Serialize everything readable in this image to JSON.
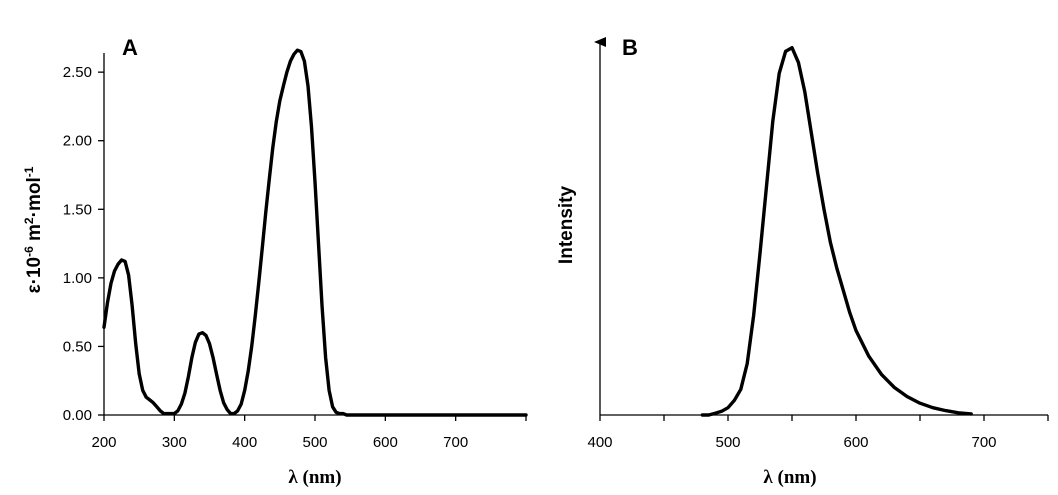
{
  "chart_data": [
    {
      "type": "line",
      "panel_label": "A",
      "xlabel": "λ (nm)",
      "ylabel": "ε·10",
      "ylabel_exp1": "-6",
      "ylabel_mid": " m",
      "ylabel_exp2": "2",
      "ylabel_end": "·mol",
      "ylabel_exp3": "-1",
      "xlim": [
        200,
        800
      ],
      "ylim": [
        0,
        2.8
      ],
      "xticks": [
        200,
        300,
        400,
        500,
        600,
        700
      ],
      "xtick_labels": [
        "200",
        "300",
        "400",
        "500",
        "600",
        "700"
      ],
      "yticks": [
        0,
        0.5,
        1.0,
        1.5,
        2.0,
        2.5
      ],
      "ytick_labels": [
        "0.00",
        "0.50",
        "1.00",
        "1.50",
        "2.00",
        "2.50"
      ],
      "grid": false,
      "series": [
        {
          "x": [
            200,
            205,
            210,
            215,
            220,
            225,
            230,
            235,
            240,
            245,
            250,
            255,
            260,
            265,
            270,
            275,
            280,
            285,
            290,
            295,
            300,
            305,
            310,
            315,
            320,
            325,
            330,
            335,
            340,
            345,
            350,
            355,
            360,
            365,
            370,
            375,
            380,
            385,
            390,
            395,
            400,
            405,
            410,
            415,
            420,
            425,
            430,
            435,
            440,
            445,
            450,
            455,
            460,
            465,
            470,
            475,
            480,
            485,
            490,
            495,
            500,
            505,
            510,
            515,
            520,
            525,
            530,
            535,
            540,
            545,
            550,
            560,
            580,
            600,
            650,
            700,
            750,
            800
          ],
          "y": [
            0.64,
            0.82,
            0.96,
            1.05,
            1.1,
            1.13,
            1.12,
            1.02,
            0.8,
            0.52,
            0.3,
            0.18,
            0.13,
            0.11,
            0.09,
            0.06,
            0.03,
            0.01,
            0.01,
            0.01,
            0.01,
            0.03,
            0.08,
            0.16,
            0.28,
            0.42,
            0.53,
            0.59,
            0.6,
            0.58,
            0.52,
            0.42,
            0.3,
            0.18,
            0.09,
            0.04,
            0.01,
            0.01,
            0.03,
            0.08,
            0.18,
            0.32,
            0.5,
            0.72,
            0.96,
            1.22,
            1.48,
            1.72,
            1.95,
            2.14,
            2.29,
            2.4,
            2.5,
            2.58,
            2.63,
            2.66,
            2.65,
            2.58,
            2.4,
            2.1,
            1.7,
            1.25,
            0.8,
            0.42,
            0.18,
            0.06,
            0.02,
            0.01,
            0.01,
            0.0,
            0.0,
            0.0,
            0.0,
            0.0,
            0.0,
            0.0,
            0.0,
            0.0
          ]
        }
      ]
    },
    {
      "type": "line",
      "panel_label": "B",
      "xlabel": "λ (nm)",
      "ylabel": "Intensity",
      "xlim": [
        400,
        750
      ],
      "ylim": [
        0,
        1.07
      ],
      "xticks": [
        400,
        500,
        600,
        700
      ],
      "xtick_labels": [
        "400",
        "500",
        "600",
        "700"
      ],
      "minor_xticks": [
        450,
        550,
        650,
        750
      ],
      "yticks": [],
      "grid": false,
      "series": [
        {
          "x": [
            480,
            485,
            490,
            495,
            500,
            505,
            510,
            515,
            520,
            525,
            530,
            535,
            540,
            545,
            550,
            555,
            560,
            565,
            570,
            575,
            580,
            585,
            590,
            595,
            600,
            610,
            620,
            630,
            640,
            650,
            660,
            670,
            680,
            690
          ],
          "y": [
            0.0,
            0.0,
            0.005,
            0.01,
            0.02,
            0.04,
            0.07,
            0.14,
            0.27,
            0.44,
            0.62,
            0.8,
            0.93,
            0.99,
            1.0,
            0.96,
            0.88,
            0.77,
            0.66,
            0.56,
            0.47,
            0.4,
            0.34,
            0.28,
            0.23,
            0.16,
            0.11,
            0.075,
            0.05,
            0.032,
            0.02,
            0.012,
            0.006,
            0.003
          ]
        }
      ]
    }
  ]
}
